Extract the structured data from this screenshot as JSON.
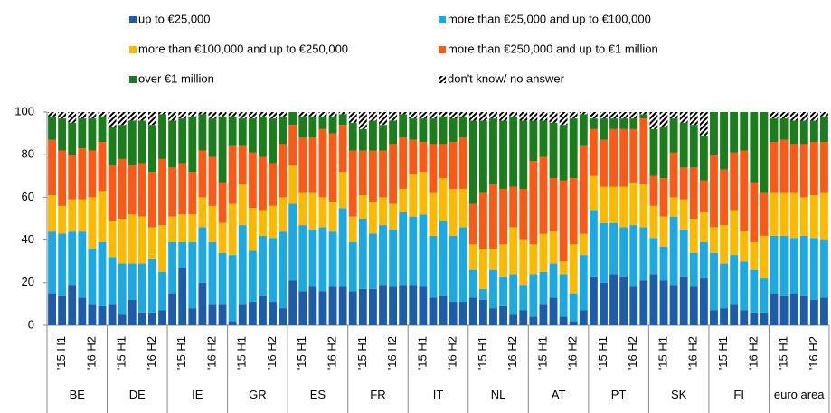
{
  "chart_data": {
    "type": "stacked-bar",
    "groups": [
      "BE",
      "DE",
      "IE",
      "GR",
      "ES",
      "FR",
      "IT",
      "NL",
      "AT",
      "PT",
      "SK",
      "FI",
      "euro area"
    ],
    "categories": [
      null,
      "'15 H1",
      null,
      null,
      "'16 H2",
      null,
      null,
      "'15 H1",
      null,
      null,
      "'16 H2",
      null,
      null,
      "'15 H1",
      null,
      null,
      "'16 H2",
      null,
      null,
      "'15 H1",
      null,
      null,
      "'16 H2",
      null,
      null,
      "'15 H1",
      null,
      null,
      "'16 H2",
      null,
      null,
      "'15 H1",
      null,
      null,
      "'16 H2",
      null,
      null,
      "'15 H1",
      null,
      null,
      "'16 H2",
      null,
      null,
      "'15 H1",
      null,
      null,
      "'16 H2",
      null,
      null,
      "'15 H1",
      null,
      null,
      "'16 H2",
      null,
      null,
      "'15 H1",
      null,
      null,
      "'16 H2",
      null,
      null,
      "'15 H1",
      null,
      null,
      "'16 H2",
      null,
      null,
      "'15 H1",
      null,
      null,
      "'16 H2",
      null,
      null,
      "'15 H1",
      null,
      null,
      "'16 H2",
      null
    ],
    "series": [
      {
        "name": "up to €25,000",
        "color": "#1c5ca8",
        "values": [
          15,
          14,
          19,
          13,
          10,
          9,
          10,
          5,
          12,
          6,
          6,
          7,
          15,
          27,
          8,
          20,
          10,
          10,
          2,
          10,
          11,
          14,
          11,
          8,
          21,
          16,
          18,
          16,
          18,
          18,
          16,
          17,
          17,
          19,
          18,
          19,
          19,
          18,
          13,
          14,
          11,
          11,
          13,
          12,
          8,
          9,
          5,
          7,
          4,
          10,
          13,
          4,
          2,
          7,
          23,
          20,
          24,
          23,
          18,
          21,
          24,
          21,
          19,
          23,
          18,
          22,
          7,
          8,
          10,
          7,
          6,
          6,
          15,
          14,
          15,
          14,
          12,
          13
        ]
      },
      {
        "name": "more than €25,000 and up to €100,000",
        "color": "#1ca9e1",
        "values": [
          29,
          29,
          25,
          31,
          26,
          30,
          22,
          24,
          17,
          23,
          25,
          18,
          24,
          12,
          31,
          26,
          29,
          24,
          31,
          37,
          24,
          28,
          30,
          36,
          36,
          31,
          27,
          30,
          26,
          37,
          23,
          33,
          26,
          28,
          27,
          34,
          32,
          34,
          29,
          35,
          31,
          35,
          13,
          5,
          18,
          14,
          19,
          12,
          20,
          15,
          16,
          20,
          13,
          26,
          31,
          28,
          24,
          23,
          29,
          25,
          17,
          16,
          32,
          22,
          16,
          17,
          27,
          21,
          23,
          23,
          20,
          16,
          27,
          28,
          26,
          28,
          29,
          27
        ]
      },
      {
        "name": "more than €100,000 and up to €250,000",
        "color": "#fbb900",
        "values": [
          17,
          13,
          15,
          15,
          24,
          24,
          17,
          21,
          23,
          22,
          15,
          22,
          12,
          13,
          13,
          14,
          17,
          14,
          24,
          19,
          20,
          12,
          15,
          16,
          18,
          15,
          17,
          14,
          14,
          17,
          12,
          11,
          15,
          13,
          12,
          11,
          20,
          20,
          20,
          20,
          22,
          18,
          12,
          19,
          10,
          15,
          22,
          21,
          14,
          18,
          15,
          6,
          23,
          10,
          16,
          17,
          17,
          19,
          20,
          20,
          15,
          14,
          9,
          14,
          16,
          14,
          12,
          18,
          21,
          14,
          13,
          20,
          20,
          20,
          21,
          18,
          20,
          22
        ]
      },
      {
        "name": "more than €250,000 and up to €1 million",
        "color": "#f95b17",
        "values": [
          26,
          26,
          21,
          24,
          22,
          23,
          26,
          28,
          23,
          25,
          26,
          31,
          23,
          24,
          20,
          22,
          23,
          19,
          27,
          18,
          26,
          25,
          20,
          25,
          19,
          26,
          26,
          32,
          32,
          22,
          31,
          21,
          24,
          22,
          28,
          24,
          16,
          14,
          23,
          16,
          22,
          24,
          19,
          26,
          30,
          26,
          19,
          24,
          39,
          36,
          25,
          38,
          31,
          41,
          22,
          22,
          27,
          27,
          25,
          31,
          14,
          18,
          21,
          15,
          24,
          15,
          34,
          26,
          27,
          38,
          28,
          20,
          24,
          25,
          23,
          25,
          25,
          24
        ]
      },
      {
        "name": "over €1 million",
        "color": "#1b7d1b",
        "values": [
          11,
          15,
          15,
          14,
          15,
          12,
          18,
          16,
          21,
          20,
          22,
          21,
          22,
          21,
          26,
          17,
          18,
          31,
          14,
          13,
          16,
          19,
          21,
          13,
          6,
          10,
          10,
          6,
          8,
          5,
          13,
          10,
          14,
          12,
          11,
          11,
          10,
          11,
          12,
          13,
          11,
          10,
          39,
          34,
          31,
          32,
          33,
          32,
          19,
          17,
          26,
          26,
          28,
          15,
          5,
          10,
          5,
          5,
          5,
          2,
          22,
          24,
          16,
          21,
          20,
          21,
          20,
          27,
          19,
          18,
          33,
          38,
          11,
          10,
          11,
          11,
          10,
          12
        ]
      },
      {
        "name": "don't know/ no answer",
        "color": "#000000",
        "pattern": "hatch",
        "values": [
          2,
          3,
          5,
          3,
          3,
          2,
          7,
          6,
          4,
          4,
          6,
          1,
          4,
          3,
          2,
          1,
          3,
          2,
          2,
          3,
          3,
          2,
          3,
          2,
          0,
          2,
          2,
          2,
          2,
          1,
          5,
          8,
          4,
          6,
          4,
          1,
          3,
          3,
          3,
          2,
          3,
          2,
          4,
          4,
          3,
          4,
          2,
          4,
          4,
          4,
          5,
          6,
          3,
          1,
          3,
          3,
          3,
          3,
          3,
          1,
          8,
          7,
          3,
          5,
          6,
          11,
          0,
          0,
          0,
          0,
          0,
          0,
          3,
          3,
          4,
          4,
          4,
          2
        ]
      }
    ],
    "ylim": [
      0,
      100
    ],
    "yticks": [
      0,
      20,
      40,
      60,
      80,
      100
    ],
    "grid": false
  }
}
